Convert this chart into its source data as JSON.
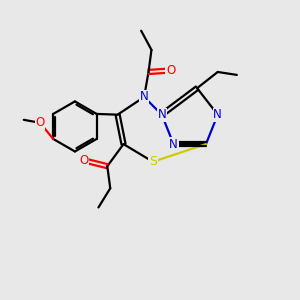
{
  "background_color": "#e8e8e8",
  "bond_color": "#000000",
  "N_color": "#0000cc",
  "S_color": "#cccc00",
  "O_color": "#ff0000",
  "lw": 1.6,
  "dbo": 0.08,
  "fs": 8.5,
  "xlim": [
    0,
    10
  ],
  "ylim": [
    0,
    10
  ],
  "figsize": [
    3.0,
    3.0
  ],
  "dpi": 100
}
